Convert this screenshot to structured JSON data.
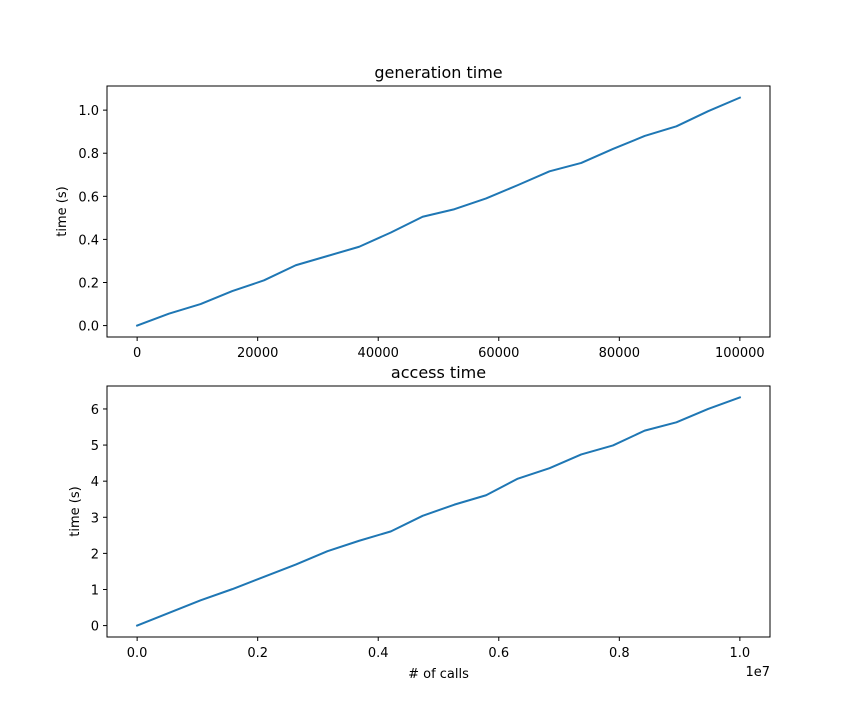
{
  "chart_data": [
    {
      "type": "line",
      "title": "generation time",
      "xlabel": "",
      "ylabel": "time (s)",
      "xlim": [
        -5000,
        105000
      ],
      "ylim": [
        -0.053,
        1.112
      ],
      "x_ticks": [
        0,
        20000,
        40000,
        60000,
        80000,
        100000
      ],
      "x_tick_labels": [
        "0",
        "20000",
        "40000",
        "60000",
        "80000",
        "100000"
      ],
      "y_ticks": [
        0.0,
        0.2,
        0.4,
        0.6,
        0.8,
        1.0
      ],
      "y_tick_labels": [
        "0.0",
        "0.2",
        "0.4",
        "0.6",
        "0.8",
        "1.0"
      ],
      "offset_text": "",
      "grid": false,
      "series": [
        {
          "color": "#1f77b4",
          "x": [
            0,
            5263,
            10526,
            15789,
            21053,
            26316,
            31579,
            36842,
            42105,
            47368,
            52632,
            57895,
            63158,
            68421,
            73684,
            78947,
            84211,
            89474,
            94737,
            100000
          ],
          "y": [
            0.0,
            0.055,
            0.1,
            0.16,
            0.21,
            0.28,
            0.323,
            0.366,
            0.432,
            0.505,
            0.54,
            0.59,
            0.652,
            0.716,
            0.755,
            0.82,
            0.88,
            0.925,
            0.995,
            1.058
          ]
        }
      ]
    },
    {
      "type": "line",
      "title": "access time",
      "xlabel": "# of calls",
      "ylabel": "time (s)",
      "xlim": [
        -500000,
        10500000
      ],
      "ylim": [
        -0.316,
        6.636
      ],
      "x_ticks": [
        0,
        2000000,
        4000000,
        6000000,
        8000000,
        10000000
      ],
      "x_tick_labels": [
        "0.0",
        "0.2",
        "0.4",
        "0.6",
        "0.8",
        "1.0"
      ],
      "y_ticks": [
        0,
        1,
        2,
        3,
        4,
        5,
        6
      ],
      "y_tick_labels": [
        "0",
        "1",
        "2",
        "3",
        "4",
        "5",
        "6"
      ],
      "offset_text": "1e7",
      "grid": false,
      "series": [
        {
          "color": "#1f77b4",
          "x": [
            0,
            526316,
            1052632,
            1578947,
            2105263,
            2631579,
            3157895,
            3684211,
            4210526,
            4736842,
            5263158,
            5789474,
            6315789,
            6842105,
            7368421,
            7894737,
            8421053,
            8947368,
            9473684,
            10000000
          ],
          "y": [
            0.0,
            0.35,
            0.7,
            1.01,
            1.35,
            1.69,
            2.06,
            2.35,
            2.61,
            3.04,
            3.35,
            3.61,
            4.07,
            4.36,
            4.74,
            4.99,
            5.4,
            5.63,
            6.0,
            6.32
          ]
        }
      ]
    }
  ]
}
